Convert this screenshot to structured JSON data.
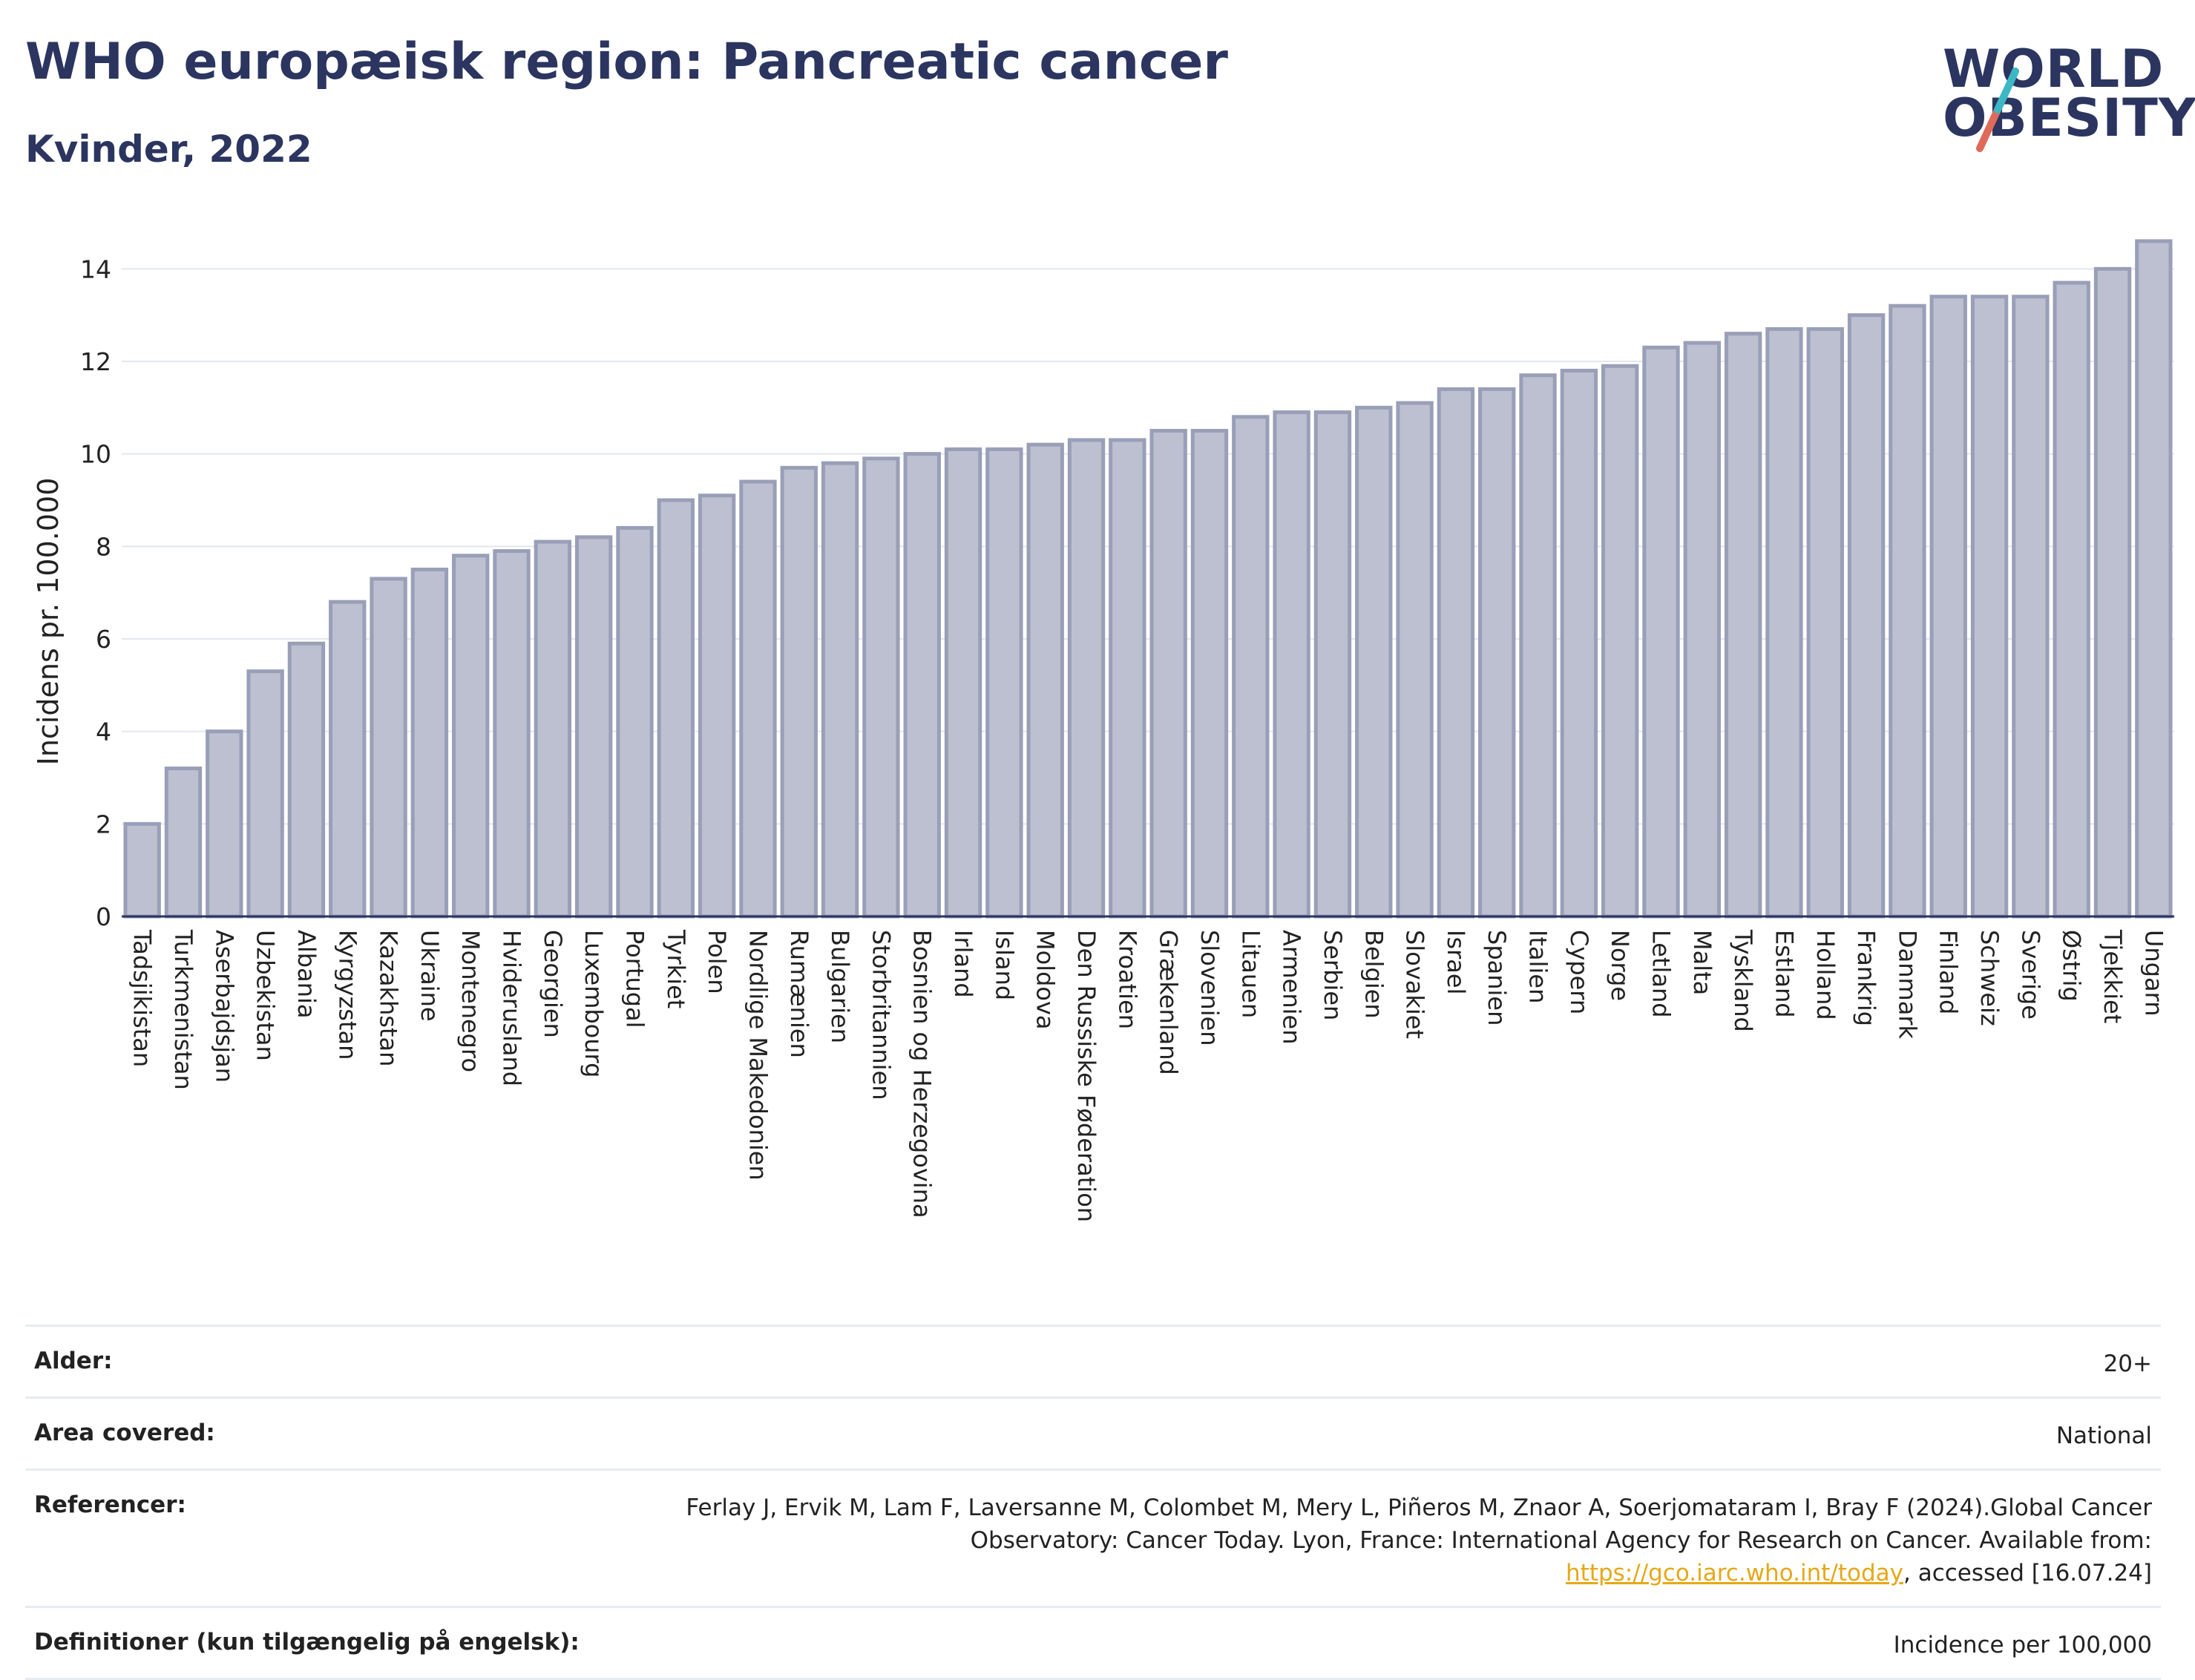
{
  "header": {
    "title": "WHO europæisk region: Pancreatic cancer",
    "subtitle": "Kvinder, 2022"
  },
  "logo": {
    "line1": "WORLD",
    "line2": "OBESITY",
    "accent_colors": [
      "#3cb8c4",
      "#e06a5a"
    ]
  },
  "chart_data": {
    "type": "bar",
    "ylabel": "Incidens pr. 100.000",
    "ylim": [
      0,
      15
    ],
    "yticks": [
      "0",
      "2",
      "4",
      "6",
      "8",
      "10",
      "12",
      "14"
    ],
    "grid": true,
    "bar_color": "#bcc0d1",
    "bar_edge_color": "#9a9fb8",
    "categories": [
      "Tadsjikistan",
      "Turkmenistan",
      "Aserbajdsjan",
      "Uzbekistan",
      "Albania",
      "Kyrgyzstan",
      "Kazakhstan",
      "Ukraine",
      "Montenegro",
      "Hviderusland",
      "Georgien",
      "Luxembourg",
      "Portugal",
      "Tyrkiet",
      "Polen",
      "Nordlige Makedonien",
      "Rumænien",
      "Bulgarien",
      "Storbritannien",
      "Bosnien og Herzegovina",
      "Irland",
      "Island",
      "Moldova",
      "Den Russiske Føderation",
      "Kroatien",
      "Grækenland",
      "Slovenien",
      "Litauen",
      "Armenien",
      "Serbien",
      "Belgien",
      "Slovakiet",
      "Israel",
      "Spanien",
      "Italien",
      "Cypern",
      "Norge",
      "Letland",
      "Malta",
      "Tyskland",
      "Estland",
      "Holland",
      "Frankrig",
      "Danmark",
      "Finland",
      "Schweiz",
      "Sverige",
      "Østrig",
      "Tjekkiet",
      "Ungarn"
    ],
    "values": [
      2.0,
      3.2,
      4.0,
      5.3,
      5.9,
      6.8,
      7.3,
      7.5,
      7.8,
      7.9,
      8.1,
      8.2,
      8.4,
      9.0,
      9.1,
      9.4,
      9.7,
      9.8,
      9.9,
      10.0,
      10.1,
      10.1,
      10.2,
      10.3,
      10.3,
      10.5,
      10.5,
      10.8,
      10.9,
      10.9,
      11.0,
      11.1,
      11.4,
      11.4,
      11.7,
      11.8,
      11.9,
      12.3,
      12.4,
      12.6,
      12.7,
      12.7,
      13.0,
      13.2,
      13.4,
      13.4,
      13.4,
      13.7,
      14.0,
      14.6
    ]
  },
  "meta": {
    "age": {
      "label": "Alder:",
      "value": "20+"
    },
    "area": {
      "label": "Area covered:",
      "value": "National"
    },
    "references": {
      "label": "Referencer:",
      "text_before": "Ferlay J, Ervik M, Lam F, Laversanne M, Colombet M, Mery L, Piñeros M, Znaor A, Soerjomataram I, Bray F (2024).Global Cancer Observatory: Cancer Today. Lyon, France: International Agency for Research on Cancer. Available from: ",
      "link": "https://gco.iarc.who.int/today",
      "text_after": ", accessed [16.07.24]"
    },
    "definitions": {
      "label": "Definitioner (kun tilgængelig på engelsk):",
      "value": "Incidence per 100,000"
    }
  }
}
